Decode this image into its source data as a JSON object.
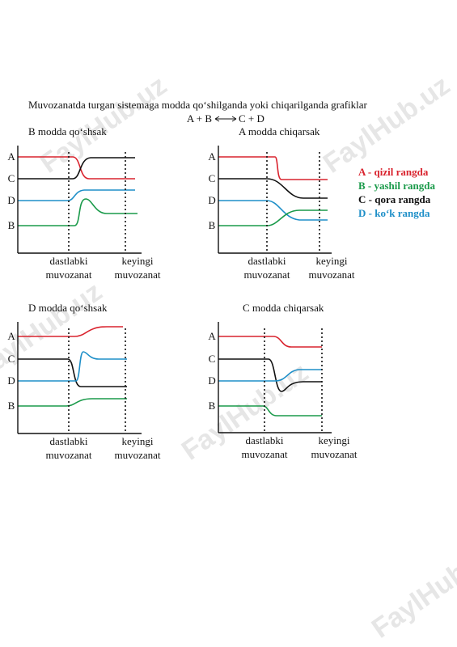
{
  "title": "Muvozanatda turgan sistemaga modda qo‘shilganda yoki chiqarilganda grafiklar",
  "equation": {
    "left": "A + B",
    "right": "C + D"
  },
  "panels": [
    {
      "title": "B modda qo‘shsak",
      "levels": [
        "A",
        "C",
        "D",
        "B"
      ],
      "start": [
        "dastlabki",
        "muvozanat"
      ],
      "end": [
        "keyingi",
        "muvozanat"
      ]
    },
    {
      "title": "A modda chiqarsak",
      "levels": [
        "A",
        "C",
        "D",
        "B"
      ],
      "start": [
        "dastlabki",
        "muvozanat"
      ],
      "end": [
        "keyingi",
        "muvozanat"
      ]
    },
    {
      "title": "D modda qo‘shsak",
      "levels": [
        "A",
        "C",
        "D",
        "B"
      ],
      "start": [
        "dastlabki",
        "muvozanat"
      ],
      "end": [
        "keyingi",
        "muvozanat"
      ]
    },
    {
      "title": "C modda chiqarsak",
      "levels": [
        "A",
        "C",
        "D",
        "B"
      ],
      "start": [
        "dastlabki",
        "muvozanat"
      ],
      "end": [
        "keyingi",
        "muvozanat"
      ]
    }
  ],
  "legend": [
    {
      "letter": "A",
      "text": " - qizil rangda",
      "color": "#d9232e"
    },
    {
      "letter": "B",
      "text": " - yashil rangda",
      "color": "#1a9a4a"
    },
    {
      "letter": "C",
      "text": " - qora rangda",
      "color": "#111111"
    },
    {
      "letter": "D",
      "text": " - ko‘k rangda",
      "color": "#1e8fc8"
    }
  ],
  "watermark": "FaylHub.uz"
}
